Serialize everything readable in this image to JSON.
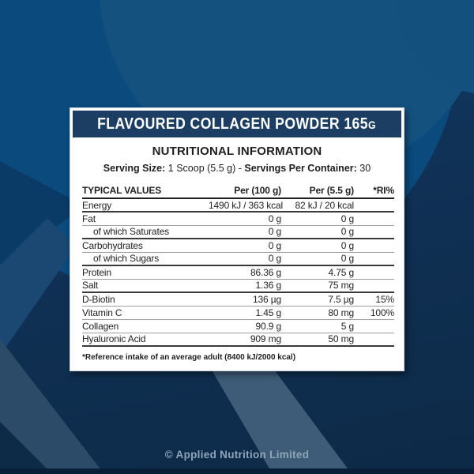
{
  "label": {
    "title": "FLAVOURED COLLAGEN POWDER 165",
    "title_unit": "G",
    "section_title": "NUTRITIONAL INFORMATION",
    "serving": {
      "size_label": "Serving Size:",
      "size_value": "1 Scoop (5.5 g)",
      "separator": "-",
      "count_label": "Servings Per Container:",
      "count_value": "30"
    },
    "table": {
      "headers": [
        "TYPICAL VALUES",
        "Per (100 g)",
        "Per (5.5 g)",
        "*RI%"
      ],
      "rows": [
        {
          "name": "Energy",
          "per100": "1490 kJ / 363 kcal",
          "per_serving": "82 kJ / 20 kcal",
          "ri": "",
          "indent": false,
          "rule": "thick"
        },
        {
          "name": "Fat",
          "per100": "0 g",
          "per_serving": "0 g",
          "ri": "",
          "indent": false,
          "rule": "thin"
        },
        {
          "name": "of which Saturates",
          "per100": "0 g",
          "per_serving": "0 g",
          "ri": "",
          "indent": true,
          "rule": "thick"
        },
        {
          "name": "Carbohydrates",
          "per100": "0 g",
          "per_serving": "0 g",
          "ri": "",
          "indent": false,
          "rule": "thin"
        },
        {
          "name": "of which Sugars",
          "per100": "0 g",
          "per_serving": "0 g",
          "ri": "",
          "indent": true,
          "rule": "thick"
        },
        {
          "name": "Protein",
          "per100": "86.36 g",
          "per_serving": "4.75 g",
          "ri": "",
          "indent": false,
          "rule": "thin"
        },
        {
          "name": "Salt",
          "per100": "1.36 g",
          "per_serving": "75 mg",
          "ri": "",
          "indent": false,
          "rule": "thick"
        },
        {
          "name": "D-Biotin",
          "per100": "136 µg",
          "per_serving": "7.5 µg",
          "ri": "15%",
          "indent": false,
          "rule": "thin"
        },
        {
          "name": "Vitamin C",
          "per100": "1.45 g",
          "per_serving": "80 mg",
          "ri": "100%",
          "indent": false,
          "rule": "thin"
        },
        {
          "name": "Collagen",
          "per100": "90.9 g",
          "per_serving": "5 g",
          "ri": "",
          "indent": false,
          "rule": "thin"
        },
        {
          "name": "Hyaluronic Acid",
          "per100": "909 mg",
          "per_serving": "50 mg",
          "ri": "",
          "indent": false,
          "rule": "thick"
        }
      ]
    },
    "footnote": "*Reference intake of an average adult (8400 kJ/2000 kcal)"
  },
  "page": {
    "copyright": "© Applied Nutrition Limited"
  },
  "colors": {
    "header-bg": "#1c3e63",
    "card-bg": "#ffffff",
    "bg-blue": "#0a4a7d",
    "bg-navy": "#0d2a47",
    "bg-stripe": "#3e5c78",
    "copyright": "#8ea5b9"
  }
}
